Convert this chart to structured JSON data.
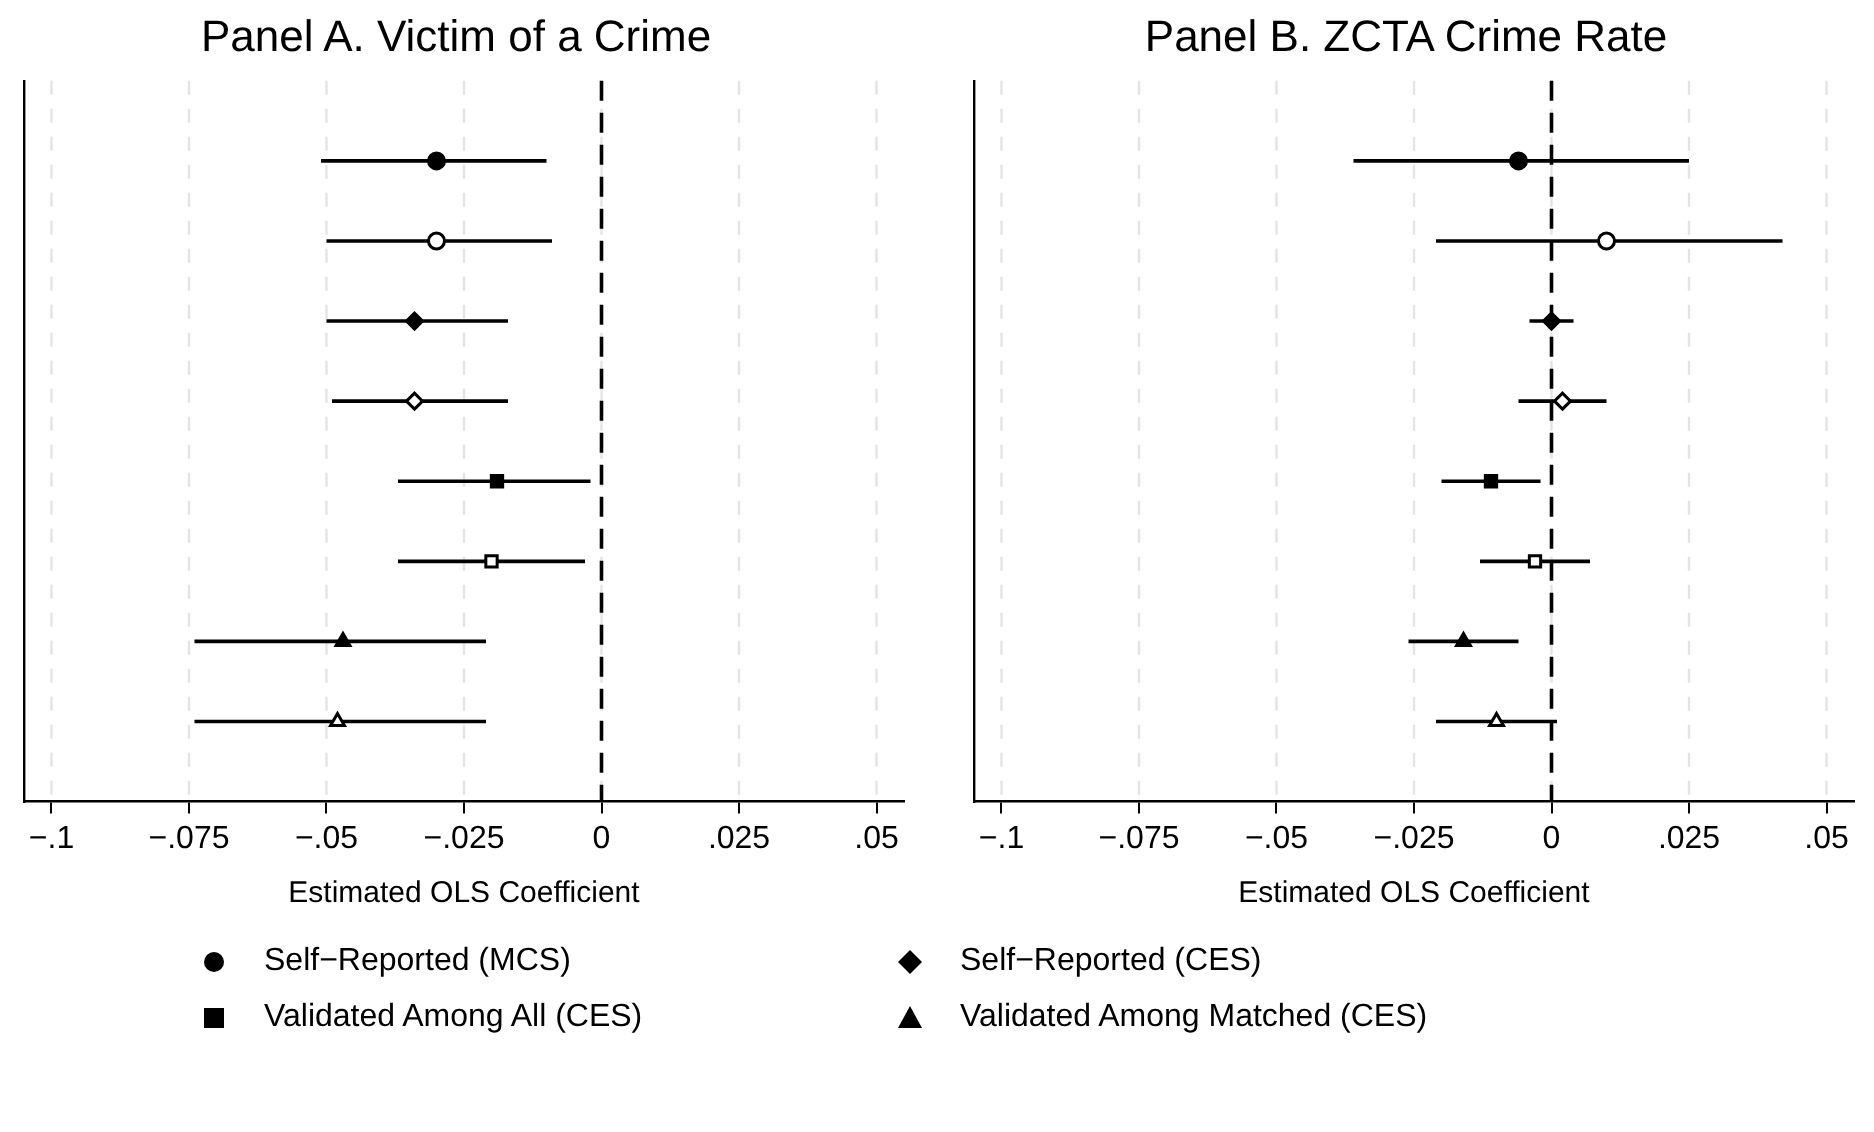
{
  "chart_data": [
    {
      "type": "scatter",
      "orientation": "horizontal",
      "title": "Panel A. Victim of a Crime",
      "xlabel": "Estimated OLS Coefficient",
      "categories": [
        null,
        null,
        null,
        null,
        null,
        null,
        null,
        null
      ],
      "xlim": [
        -0.105,
        0.055
      ],
      "xticks": [
        {
          "value": -0.1,
          "label": "−.1"
        },
        {
          "value": -0.075,
          "label": "−.075"
        },
        {
          "value": -0.05,
          "label": "−.05"
        },
        {
          "value": -0.025,
          "label": "−.025"
        },
        {
          "value": 0,
          "label": "0"
        },
        {
          "value": 0.025,
          "label": ".025"
        },
        {
          "value": 0.05,
          "label": ".05"
        }
      ],
      "grid": "x",
      "tick_labels": "x",
      "legend": "bottom",
      "ref_lines": [
        {
          "axis": "x",
          "value": 0,
          "color": "#000000",
          "line_style": "dashed"
        }
      ],
      "series": [
        {
          "name": "Self−Reported (MCS)",
          "color": "#000000",
          "marker": "circle",
          "values": [
            -0.03,
            -0.03,
            null,
            null,
            null,
            null,
            null,
            null
          ],
          "errors": [
            [
              -0.051,
              -0.01
            ],
            [
              -0.05,
              -0.009
            ],
            null,
            null,
            null,
            null,
            null,
            null
          ]
        },
        {
          "name": "Self−Reported (CES)",
          "color": "#000000",
          "marker": "diamond",
          "values": [
            null,
            null,
            -0.034,
            -0.034,
            null,
            null,
            null,
            null
          ],
          "errors": [
            null,
            null,
            [
              -0.05,
              -0.017
            ],
            [
              -0.049,
              -0.017
            ],
            null,
            null,
            null,
            null
          ]
        },
        {
          "name": "Validated Among All (CES)",
          "color": "#000000",
          "marker": "square",
          "values": [
            null,
            null,
            null,
            null,
            -0.019,
            -0.02,
            null,
            null
          ],
          "errors": [
            null,
            null,
            null,
            null,
            [
              -0.037,
              -0.002
            ],
            [
              -0.037,
              -0.003
            ],
            null,
            null
          ]
        },
        {
          "name": "Validated Among Matched (CES)",
          "color": "#000000",
          "marker": "triangle",
          "values": [
            null,
            null,
            null,
            null,
            null,
            null,
            -0.047,
            -0.048
          ],
          "errors": [
            null,
            null,
            null,
            null,
            null,
            null,
            [
              -0.074,
              -0.021
            ],
            [
              -0.074,
              -0.021
            ]
          ]
        }
      ]
    },
    {
      "type": "scatter",
      "orientation": "horizontal",
      "title": "Panel B. ZCTA Crime Rate",
      "xlabel": "Estimated OLS Coefficient",
      "categories": [
        null,
        null,
        null,
        null,
        null,
        null,
        null,
        null
      ],
      "xlim": [
        -0.105,
        0.055
      ],
      "xticks": [
        {
          "value": -0.1,
          "label": "−.1"
        },
        {
          "value": -0.075,
          "label": "−.075"
        },
        {
          "value": -0.05,
          "label": "−.05"
        },
        {
          "value": -0.025,
          "label": "−.025"
        },
        {
          "value": 0,
          "label": "0"
        },
        {
          "value": 0.025,
          "label": ".025"
        },
        {
          "value": 0.05,
          "label": ".05"
        }
      ],
      "grid": "x",
      "tick_labels": "x",
      "ref_lines": [
        {
          "axis": "x",
          "value": 0,
          "color": "#000000",
          "line_style": "dashed"
        }
      ],
      "series": [
        {
          "color": "#000000",
          "marker": "circle",
          "values": [
            -0.006,
            0.01,
            null,
            null,
            null,
            null,
            null,
            null
          ],
          "errors": [
            [
              -0.036,
              0.025
            ],
            [
              -0.021,
              0.042
            ],
            null,
            null,
            null,
            null,
            null,
            null
          ]
        },
        {
          "color": "#000000",
          "marker": "diamond",
          "values": [
            null,
            null,
            0.0,
            0.002,
            null,
            null,
            null,
            null
          ],
          "errors": [
            null,
            null,
            [
              -0.004,
              0.004
            ],
            [
              -0.006,
              0.01
            ],
            null,
            null,
            null,
            null
          ]
        },
        {
          "color": "#000000",
          "marker": "square",
          "values": [
            null,
            null,
            null,
            null,
            -0.011,
            -0.003,
            null,
            null
          ],
          "errors": [
            null,
            null,
            null,
            null,
            [
              -0.02,
              -0.002
            ],
            [
              -0.013,
              0.007
            ],
            null,
            null
          ]
        },
        {
          "color": "#000000",
          "marker": "triangle",
          "values": [
            null,
            null,
            null,
            null,
            null,
            null,
            -0.016,
            -0.01
          ],
          "errors": [
            null,
            null,
            null,
            null,
            null,
            null,
            [
              -0.026,
              -0.006
            ],
            [
              -0.021,
              0.001
            ]
          ]
        }
      ]
    }
  ]
}
